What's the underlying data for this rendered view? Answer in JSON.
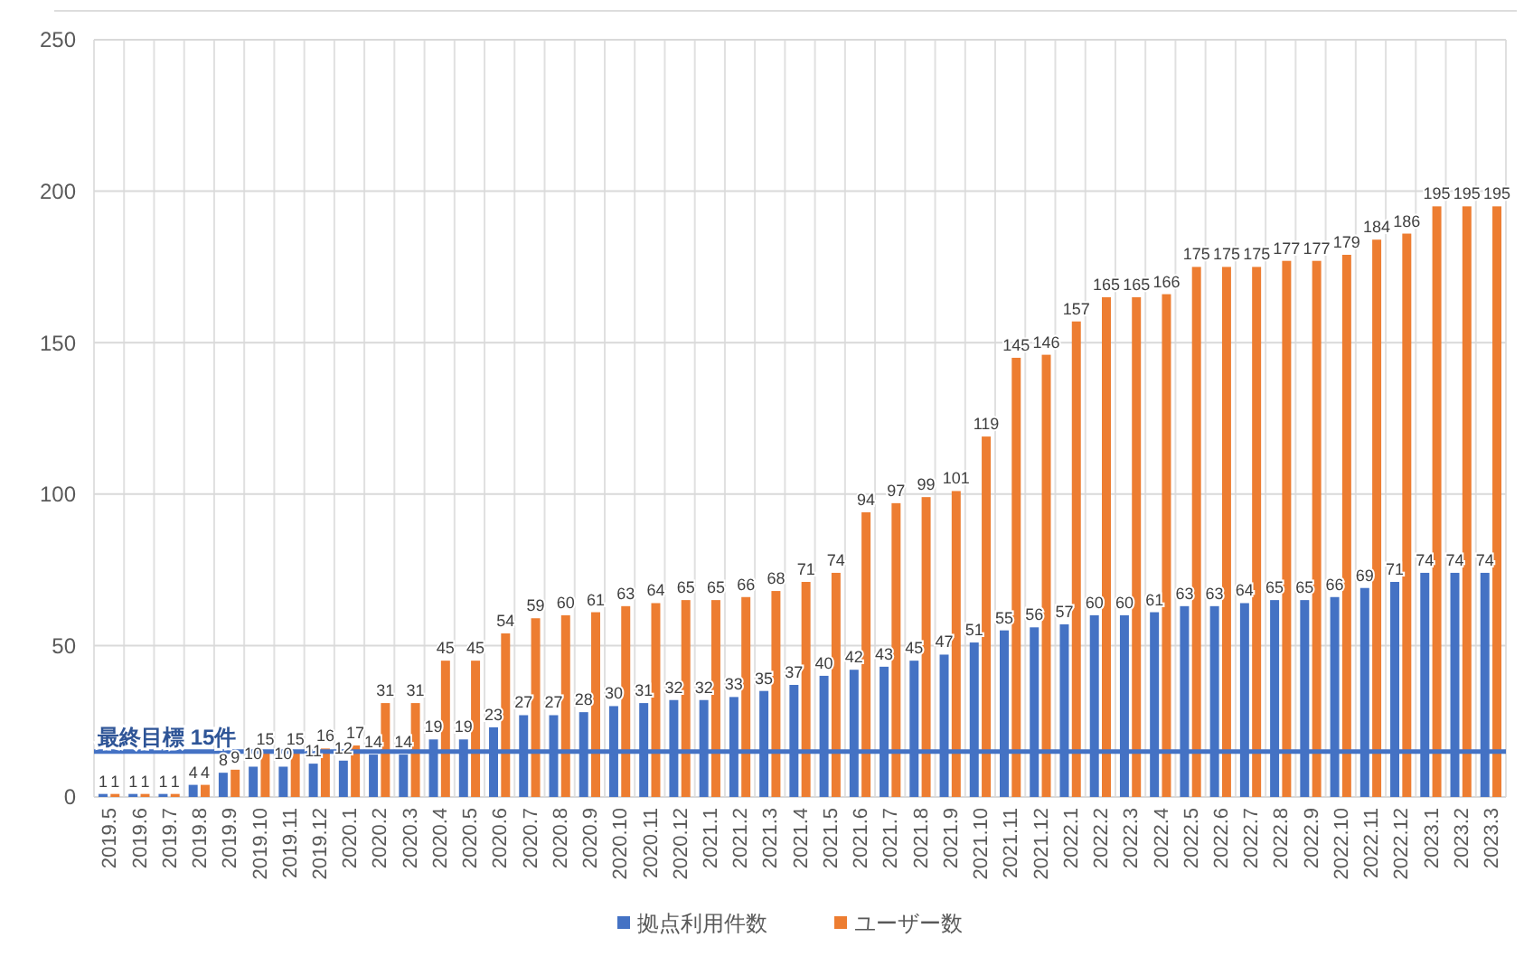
{
  "chart_data": {
    "type": "bar",
    "categories": [
      "2019.5",
      "2019.6",
      "2019.7",
      "2019.8",
      "2019.9",
      "2019.10",
      "2019.11",
      "2019.12",
      "2020.1",
      "2020.2",
      "2020.3",
      "2020.4",
      "2020.5",
      "2020.6",
      "2020.7",
      "2020.8",
      "2020.9",
      "2020.10",
      "2020.11",
      "2020.12",
      "2021.1",
      "2021.2",
      "2021.3",
      "2021.4",
      "2021.5",
      "2021.6",
      "2021.7",
      "2021.8",
      "2021.9",
      "2021.10",
      "2021.11",
      "2021.12",
      "2022.1",
      "2022.2",
      "2022.3",
      "2022.4",
      "2022.5",
      "2022.6",
      "2022.7",
      "2022.8",
      "2022.9",
      "2022.10",
      "2022.11",
      "2022.12",
      "2023.1",
      "2023.2",
      "2023.3"
    ],
    "series": [
      {
        "name": "拠点利用件数",
        "color": "#4472c4",
        "values": [
          1,
          1,
          1,
          4,
          8,
          10,
          10,
          11,
          12,
          14,
          14,
          19,
          19,
          23,
          27,
          27,
          28,
          30,
          31,
          32,
          32,
          33,
          35,
          37,
          40,
          42,
          43,
          45,
          47,
          51,
          55,
          56,
          57,
          60,
          60,
          61,
          63,
          63,
          64,
          65,
          65,
          66,
          69,
          71,
          74,
          74,
          74
        ]
      },
      {
        "name": "ユーザー数",
        "color": "#ed7d31",
        "values": [
          1,
          1,
          1,
          4,
          9,
          15,
          15,
          16,
          17,
          31,
          31,
          45,
          45,
          54,
          59,
          60,
          61,
          63,
          64,
          65,
          65,
          66,
          68,
          71,
          74,
          94,
          97,
          99,
          101,
          119,
          145,
          146,
          157,
          165,
          165,
          166,
          175,
          175,
          175,
          177,
          177,
          179,
          184,
          186,
          195,
          195,
          195
        ]
      }
    ],
    "ylim": [
      0,
      250
    ],
    "yticks": [
      0,
      50,
      100,
      150,
      200,
      250
    ],
    "grid": true,
    "legend": "bottom",
    "data_labels": true,
    "ref_lines": [
      {
        "axis": "y",
        "value": 15,
        "label": "最終目標 15件",
        "color": "#4472c4"
      }
    ]
  }
}
